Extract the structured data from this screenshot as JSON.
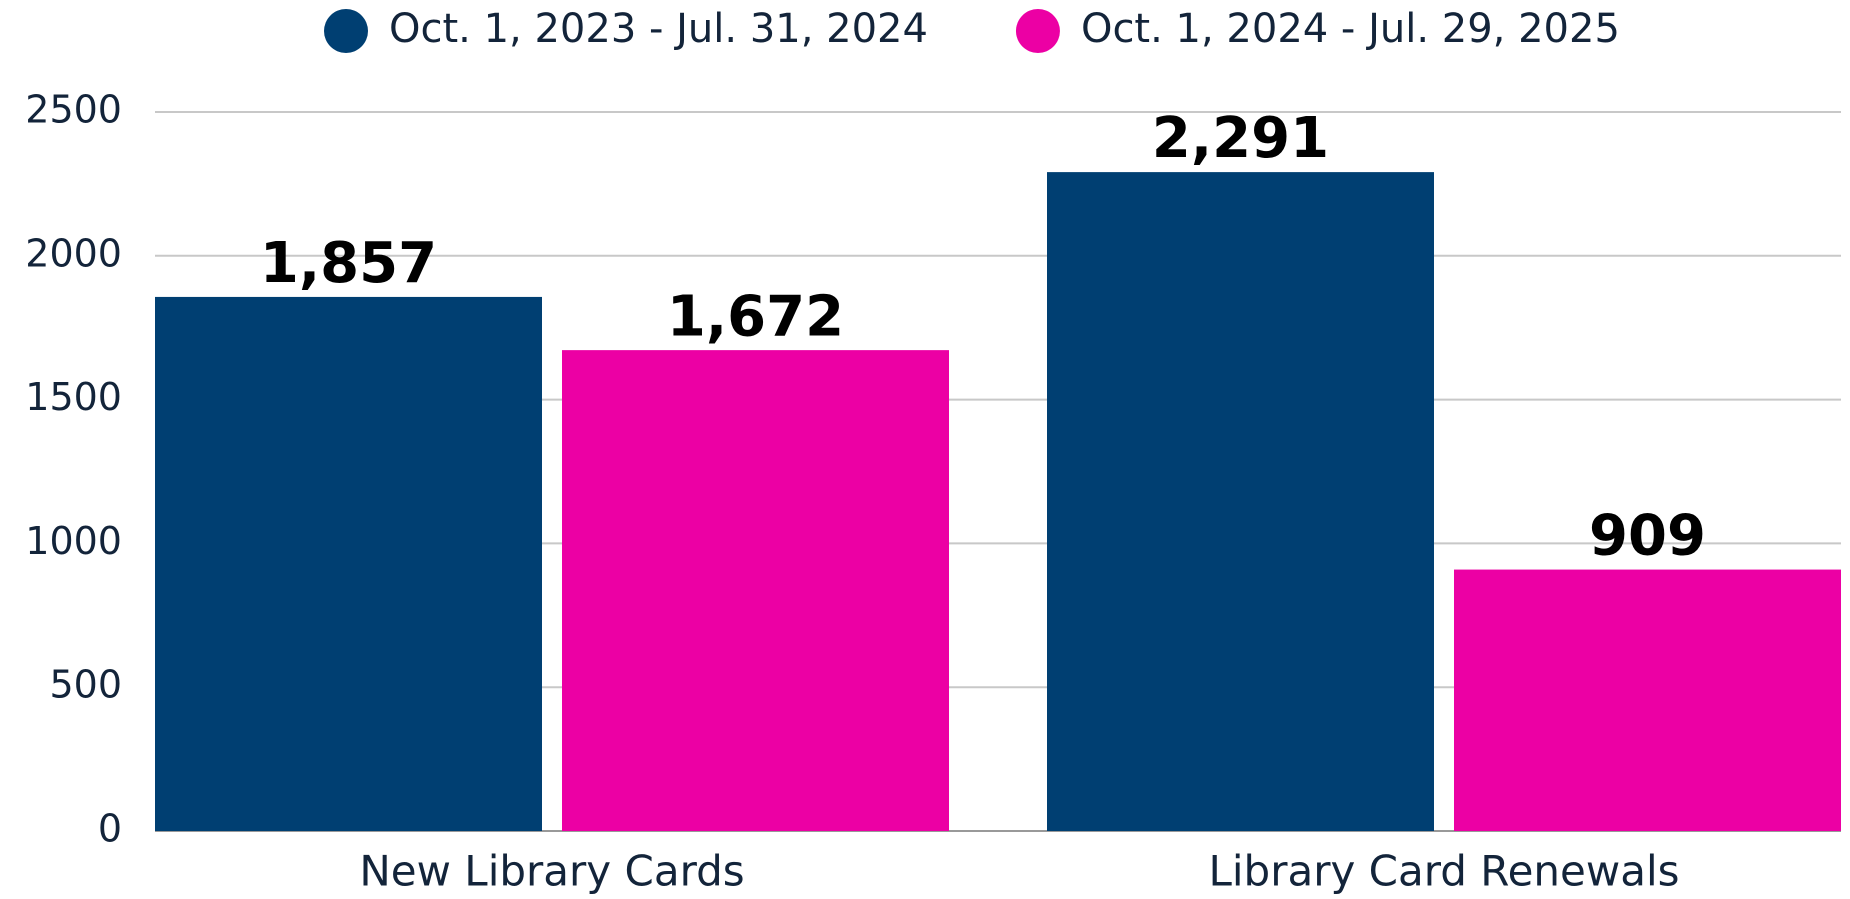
{
  "chart_data": {
    "type": "bar",
    "categories": [
      "New Library Cards",
      "Library Card Renewals"
    ],
    "series": [
      {
        "name": "Oct. 1, 2023 - Jul. 31, 2024",
        "color": "#003f72",
        "values": [
          1857,
          2291
        ],
        "value_labels": [
          "1,857",
          "2,291"
        ]
      },
      {
        "name": "Oct. 1, 2024 - Jul. 29, 2025",
        "color": "#ec00a4",
        "values": [
          1672,
          909
        ],
        "value_labels": [
          "1,672",
          "909"
        ]
      }
    ],
    "ylim": [
      0,
      2500
    ],
    "yticks": [
      0,
      500,
      1000,
      1500,
      2000,
      2500
    ],
    "grid": true,
    "legend": "top"
  }
}
